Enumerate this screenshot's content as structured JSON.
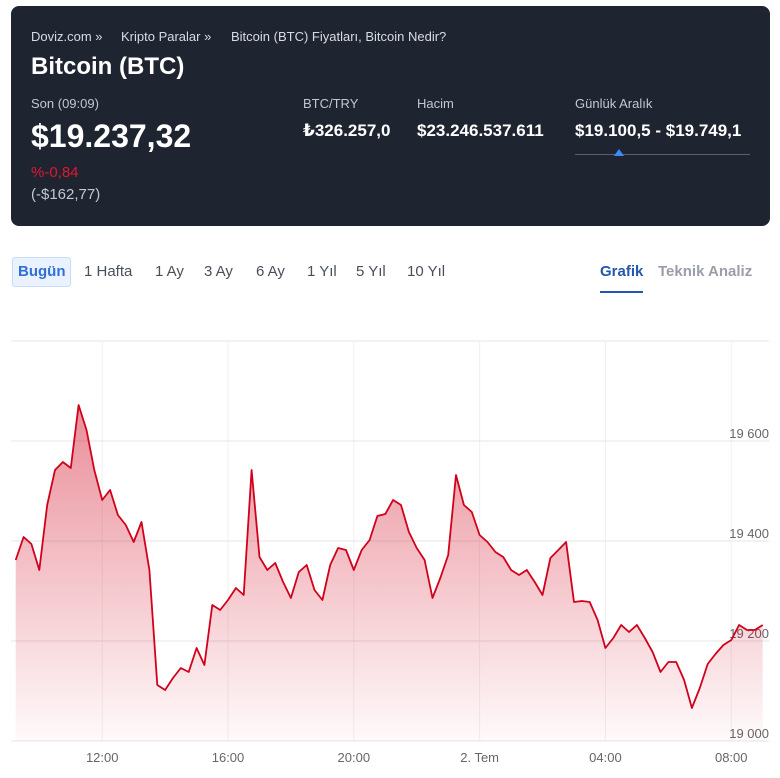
{
  "breadcrumb": [
    "Doviz.com »",
    "Kripto Paralar »",
    "Bitcoin (BTC) Fiyatları, Bitcoin Nedir?"
  ],
  "title": "Bitcoin (BTC)",
  "last_label": "Son (09:09)",
  "price": "$19.237,32",
  "change_percent": "%-0,84",
  "change_amount": "(-$162,77)",
  "stats": [
    {
      "label": "BTC/TRY",
      "value": "₺326.257,0"
    },
    {
      "label": "Hacim",
      "value": "$23.246.537.611"
    },
    {
      "label": "Günlük Aralık",
      "value": "$19.100,5 - $19.749,1"
    }
  ],
  "period_tabs": [
    {
      "label": "Bugün",
      "active": true
    },
    {
      "label": "1 Hafta"
    },
    {
      "label": "1 Ay"
    },
    {
      "label": "3 Ay"
    },
    {
      "label": "6 Ay"
    },
    {
      "label": "1 Yıl"
    },
    {
      "label": "5 Yıl"
    },
    {
      "label": "10 Yıl"
    }
  ],
  "view_tabs": [
    {
      "label": "Grafik",
      "active": true
    },
    {
      "label": "Teknik Analiz"
    }
  ],
  "chart_data": {
    "type": "area",
    "color": "#d0021b",
    "grid": true,
    "x": [
      9.25,
      9.5,
      9.75,
      10,
      10.25,
      10.5,
      10.75,
      11,
      11.25,
      11.5,
      11.75,
      12,
      12.25,
      12.5,
      12.75,
      13,
      13.25,
      13.5,
      13.75,
      14,
      14.25,
      14.5,
      14.75,
      15,
      15.25,
      15.5,
      15.75,
      16,
      16.25,
      16.5,
      16.75,
      17,
      17.25,
      17.5,
      17.75,
      18,
      18.25,
      18.5,
      18.75,
      19,
      19.25,
      19.5,
      19.75,
      20,
      20.25,
      20.5,
      20.75,
      21,
      21.25,
      21.5,
      21.75,
      22,
      22.25,
      22.5,
      22.75,
      23,
      23.25,
      23.5,
      23.75,
      24,
      24.25,
      24.5,
      24.75,
      25,
      25.25,
      25.5,
      25.75,
      26,
      26.25,
      26.5,
      26.75,
      27,
      27.25,
      27.5,
      27.75,
      28,
      28.25,
      28.5,
      28.75,
      29,
      29.25,
      29.5,
      29.75,
      30,
      30.25,
      30.5,
      30.75,
      31,
      31.25,
      31.5,
      31.75,
      32,
      32.25,
      32.5,
      32.75,
      33
    ],
    "values": [
      19362,
      19408,
      19394,
      19342,
      19472,
      19542,
      19558,
      19546,
      19672,
      19622,
      19542,
      19482,
      19502,
      19452,
      19432,
      19398,
      19438,
      19342,
      19112,
      19102,
      19126,
      19146,
      19138,
      19186,
      19152,
      19272,
      19262,
      19282,
      19306,
      19292,
      19542,
      19368,
      19342,
      19356,
      19318,
      19286,
      19338,
      19352,
      19302,
      19282,
      19352,
      19386,
      19382,
      19342,
      19382,
      19402,
      19450,
      19454,
      19482,
      19472,
      19418,
      19386,
      19362,
      19286,
      19326,
      19372,
      19532,
      19472,
      19458,
      19412,
      19398,
      19378,
      19368,
      19342,
      19332,
      19342,
      19318,
      19292,
      19366,
      19382,
      19398,
      19278,
      19280,
      19278,
      19242,
      19186,
      19206,
      19232,
      19218,
      19232,
      19206,
      19178,
      19138,
      19158,
      19158,
      19122,
      19066,
      19106,
      19154,
      19174,
      19192,
      19202,
      19232,
      19222,
      19222,
      19232
    ],
    "xlim": [
      9.1,
      33.2
    ],
    "ylim": [
      19000,
      19800
    ],
    "xticks": [
      {
        "value": 12,
        "label": "12:00"
      },
      {
        "value": 16,
        "label": "16:00"
      },
      {
        "value": 20,
        "label": "20:00"
      },
      {
        "value": 24,
        "label": "2. Tem"
      },
      {
        "value": 28,
        "label": "04:00"
      },
      {
        "value": 32,
        "label": "08:00"
      }
    ],
    "yticks": [
      {
        "value": 19000,
        "label": "19 000"
      },
      {
        "value": 19200,
        "label": "19 200"
      },
      {
        "value": 19400,
        "label": "19 400"
      },
      {
        "value": 19600,
        "label": "19 600"
      }
    ]
  }
}
